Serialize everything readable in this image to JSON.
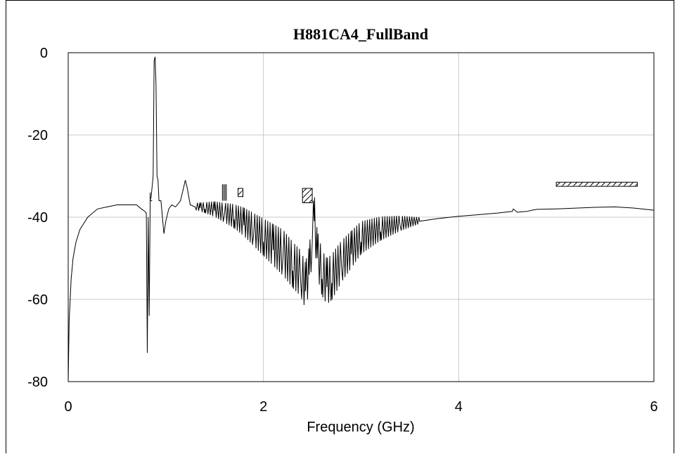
{
  "chart_data": {
    "type": "line",
    "title": "H881CA4_FullBand",
    "xlabel": "Frequency (GHz)",
    "ylabel": "",
    "xlim": [
      0,
      6
    ],
    "ylim": [
      -80,
      0
    ],
    "x_ticks": [
      "0",
      "2",
      "4",
      "6"
    ],
    "y_ticks": [
      "0",
      "-20",
      "-40",
      "-60",
      "-80"
    ],
    "grid": true,
    "legend": "none",
    "series": [
      {
        "x": [
          0.0,
          0.01,
          0.03,
          0.05,
          0.08,
          0.12,
          0.2,
          0.3,
          0.4,
          0.5,
          0.6,
          0.7,
          0.75,
          0.78,
          0.8,
          0.81,
          0.82,
          0.83,
          0.84,
          0.85,
          0.87,
          0.88,
          0.89,
          0.9,
          0.91,
          0.92,
          0.93,
          0.95,
          0.98,
          1.0,
          1.03,
          1.06,
          1.1,
          1.15,
          1.2,
          1.22,
          1.25,
          1.3,
          1.35,
          1.4,
          1.5,
          1.6,
          1.7,
          1.8,
          1.9,
          2.0,
          2.1,
          2.2,
          2.3,
          2.38,
          2.43,
          2.47,
          2.5,
          2.52,
          2.55,
          2.6,
          2.65,
          2.7,
          2.8,
          2.9,
          3.0,
          3.2,
          3.4,
          3.6,
          3.8,
          4.0,
          4.2,
          4.4,
          4.55,
          4.56,
          4.6,
          4.7,
          4.75,
          4.8,
          5.0,
          5.2,
          5.4,
          5.6,
          5.8,
          6.0
        ],
        "y": [
          -80,
          -65,
          -55,
          -50,
          -46,
          -43,
          -40,
          -38,
          -37.5,
          -37,
          -37,
          -37,
          -38,
          -38.5,
          -39,
          -73,
          -40,
          -64,
          -36,
          -35,
          -30,
          -2,
          -1,
          -8,
          -30,
          -31,
          -36,
          -36,
          -44,
          -41,
          -38,
          -37,
          -37.5,
          -36,
          -31,
          -33,
          -37,
          -37.5,
          -37.8,
          -38,
          -38.5,
          -39.5,
          -40.5,
          -42,
          -44,
          -46,
          -48,
          -50,
          -53,
          -55,
          -58,
          -54,
          -46,
          -41,
          -50,
          -55,
          -57,
          -56,
          -52,
          -49,
          -46,
          -43.5,
          -42,
          -41,
          -40.3,
          -39.8,
          -39.4,
          -39,
          -38.6,
          -38,
          -38.8,
          -38.6,
          -38.3,
          -38.1,
          -38,
          -37.8,
          -37.6,
          -37.5,
          -37.8,
          -38.3
        ]
      }
    ],
    "band_markers": [
      {
        "style": "lines",
        "x_start": 1.58,
        "x_end": 1.62,
        "y_top": -32,
        "y_bottom": -36
      },
      {
        "style": "hatch",
        "x_start": 1.74,
        "x_end": 1.79,
        "y_top": -33,
        "y_bottom": -35
      },
      {
        "style": "hatch",
        "x_start": 2.4,
        "x_end": 2.5,
        "y_top": -33,
        "y_bottom": -36.5
      },
      {
        "style": "hatch",
        "x_start": 5.0,
        "x_end": 5.83,
        "y_top": -31.5,
        "y_bottom": -32.5
      },
      {
        "style": "tick",
        "x_start": 0.84,
        "x_end": 0.86,
        "y_top": -34,
        "y_bottom": -36
      }
    ]
  }
}
